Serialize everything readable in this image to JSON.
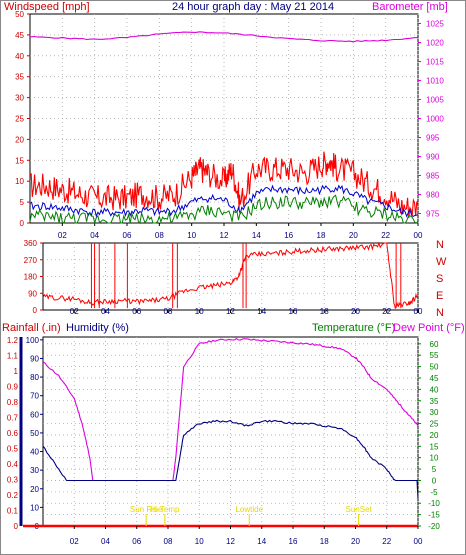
{
  "header": {
    "left": "Windspeed [mph]",
    "center": "24 hour graph day : May 21 2014",
    "right": "Barometer [mb]"
  },
  "colors": {
    "wind": "#ff0000",
    "wind_avg": "#0000cc",
    "wind_low": "#008000",
    "baro": "#dd00dd",
    "grid": "#a9a9a9",
    "frame": "#000000",
    "rain": "#ff0000",
    "humid": "#000080",
    "temp": "#008000",
    "dew": "#dd00dd",
    "sun": "#e6d800"
  },
  "chart_data": [
    {
      "id": "wind_baro",
      "type": "line",
      "x_ticks": [
        "02",
        "04",
        "06",
        "08",
        "10",
        "12",
        "14",
        "16",
        "18",
        "20",
        "22",
        "00"
      ],
      "y_left_label": "Windspeed [mph]",
      "y_left_ticks": [
        0,
        5,
        10,
        15,
        20,
        25,
        30,
        35,
        40,
        45,
        50
      ],
      "y_left_range": [
        0,
        50
      ],
      "y_right_label": "Barometer [mb]",
      "y_right_ticks": [
        975,
        980,
        985,
        990,
        995,
        1000,
        1005,
        1010,
        1015,
        1020,
        1025
      ],
      "y_right_range": [
        972.5,
        1027.5
      ],
      "grid": true,
      "series": [
        {
          "key": "gust",
          "axis": "left",
          "color": "#ff0000",
          "x": [
            0,
            1,
            2,
            3,
            4,
            5,
            6,
            7,
            8,
            9,
            10,
            10.5,
            11,
            12,
            12.5,
            13,
            14,
            15,
            16,
            17,
            18,
            18.5,
            19,
            20,
            21,
            22,
            23,
            24
          ],
          "y": [
            9,
            9,
            8,
            7,
            6,
            6,
            6,
            7,
            6,
            7,
            11,
            13,
            12,
            10,
            13,
            5,
            13,
            13,
            13,
            12,
            14,
            15,
            13,
            12,
            9,
            7,
            4,
            4
          ]
        },
        {
          "key": "average",
          "axis": "left",
          "color": "#0000cc",
          "x": [
            0,
            1,
            2,
            3,
            4,
            5,
            6,
            7,
            8,
            9,
            10,
            11,
            12,
            13,
            14,
            15,
            16,
            17,
            18,
            19,
            20,
            21,
            22,
            23,
            24
          ],
          "y": [
            4,
            4,
            3.5,
            3,
            2.5,
            2.5,
            2.5,
            3,
            2.5,
            3,
            5,
            6,
            5.5,
            3,
            7,
            8,
            8,
            7.5,
            8,
            8.5,
            7,
            5,
            4,
            2.5,
            2
          ]
        },
        {
          "key": "low",
          "axis": "left",
          "color": "#008000",
          "x": [
            0,
            1,
            2,
            3,
            4,
            5,
            6,
            7,
            8,
            9,
            10,
            11,
            12,
            13,
            14,
            15,
            16,
            17,
            18,
            19,
            20,
            21,
            22,
            23,
            24
          ],
          "y": [
            1.5,
            1.5,
            1.2,
            1,
            1,
            1,
            1,
            1,
            1,
            1,
            2,
            3,
            2.5,
            1,
            4,
            5,
            5,
            4.5,
            5,
            5.5,
            4,
            2.5,
            2,
            1,
            0.5
          ]
        },
        {
          "key": "barometer",
          "axis": "right",
          "color": "#dd00dd",
          "x": [
            0,
            2,
            4,
            6,
            8,
            10,
            12,
            14,
            16,
            18,
            20,
            22,
            24
          ],
          "y": [
            1021.5,
            1021.2,
            1020.8,
            1021.3,
            1022.2,
            1022.8,
            1022.5,
            1021.8,
            1021.0,
            1020.5,
            1020.3,
            1020.6,
            1021.3
          ]
        }
      ]
    },
    {
      "id": "direction",
      "type": "line",
      "x_ticks": [
        "02",
        "04",
        "06",
        "08",
        "10",
        "12",
        "14",
        "16",
        "18",
        "20",
        "22",
        "00"
      ],
      "y_left_ticks": [
        0,
        90,
        180,
        270,
        360
      ],
      "y_range": [
        0,
        360
      ],
      "y_right_labels": [
        "N",
        "W",
        "S",
        "E",
        "N"
      ],
      "grid": true,
      "series": [
        {
          "key": "direction",
          "color": "#ff0000",
          "x": [
            0,
            1,
            2,
            3,
            4,
            5,
            6,
            7,
            8,
            9,
            10,
            11,
            12,
            12.5,
            13,
            14,
            15,
            16,
            17,
            18,
            19,
            20,
            21,
            22,
            22.5,
            23,
            23.5,
            24
          ],
          "y": [
            70,
            65,
            60,
            40,
            45,
            50,
            45,
            50,
            60,
            100,
            120,
            130,
            145,
            180,
            290,
            300,
            305,
            315,
            320,
            325,
            330,
            335,
            340,
            355,
            20,
            30,
            40,
            80
          ]
        }
      ]
    },
    {
      "id": "rain_humidity_temp",
      "type": "line",
      "x_ticks": [
        "02",
        "04",
        "06",
        "08",
        "10",
        "12",
        "14",
        "16",
        "18",
        "20",
        "22",
        "00"
      ],
      "y_left_label": "Rainfall (.in)",
      "y_left2_label": "Humidity (%)",
      "y_right_label": "Temperature (°F)",
      "y_right2_label": "Dew Point (°F)",
      "rain_ticks": [
        0,
        0.1,
        0.2,
        0.3,
        0.4,
        0.5,
        0.6,
        0.7,
        0.8,
        0.9,
        1,
        1.1,
        1.2
      ],
      "humidity_ticks": [
        0,
        10,
        20,
        30,
        40,
        50,
        60,
        70,
        80,
        90,
        100
      ],
      "temp_ticks": [
        -20,
        -15,
        -10,
        -5,
        0,
        5,
        10,
        15,
        20,
        25,
        30,
        35,
        40,
        45,
        50,
        55,
        60
      ],
      "temp_range": [
        -20,
        63
      ],
      "grid": true,
      "series": [
        {
          "key": "temperature",
          "axis": "right",
          "color": "#dd00dd",
          "x": [
            0,
            1,
            2,
            2.5,
            3,
            3.5,
            4,
            5,
            6,
            7,
            7.7,
            8,
            8.5,
            9,
            10,
            11,
            12,
            13,
            14,
            15,
            16,
            17,
            18,
            19,
            20,
            20.5,
            21,
            22,
            22.5,
            23,
            23.5,
            24
          ],
          "y": [
            52,
            46,
            36,
            25,
            10,
            -18,
            -18,
            -18,
            -18,
            -18,
            -18,
            -17,
            10,
            50,
            60,
            61.5,
            62,
            62,
            61.5,
            61,
            60.5,
            60,
            59,
            58,
            54,
            50,
            45,
            40,
            36,
            32,
            28,
            24
          ]
        },
        {
          "key": "dew_point",
          "axis": "right",
          "color": "#000080",
          "x": [
            0,
            1,
            2,
            2.5,
            3,
            3.5,
            4,
            5,
            6,
            7,
            7.7,
            8,
            8.5,
            9,
            10,
            11,
            12,
            13,
            14,
            15,
            16,
            17,
            18,
            19,
            20,
            20.5,
            21,
            22,
            22.5,
            23,
            23.5,
            24
          ],
          "y": [
            15,
            5,
            -5,
            -10,
            -15,
            -18,
            -18,
            -18,
            -18,
            -18,
            -18,
            -17,
            0,
            20,
            25,
            26,
            26,
            24,
            26,
            26,
            25,
            25,
            24,
            23,
            19,
            15,
            10,
            5,
            0,
            -5,
            -8,
            -8
          ]
        },
        {
          "key": "rainfall",
          "axis": "left",
          "color": "#ff0000",
          "x": [
            0,
            24
          ],
          "y": [
            0,
            0
          ]
        }
      ],
      "events": [
        {
          "label": "Sun Rise",
          "x": 6.6
        },
        {
          "label": "Hi Temp",
          "x": 7.8
        },
        {
          "label": "Lowtide",
          "x": 13.2
        },
        {
          "label": "SunSet",
          "x": 20.2
        }
      ]
    }
  ],
  "panel3": {
    "rain_label": "Rainfall (.in)",
    "humid_label": "Humidity (%)",
    "temp_label": "Temperature (°F)",
    "dew_label": "Dew Point (°F)"
  },
  "direction_letters": [
    "N",
    "W",
    "S",
    "E",
    "N"
  ]
}
